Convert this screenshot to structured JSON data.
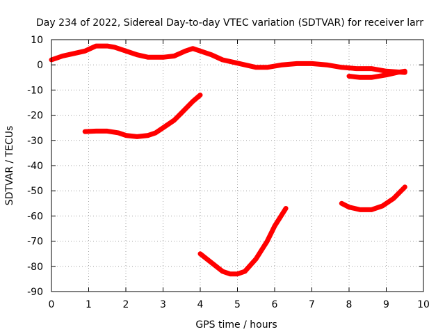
{
  "chart_data": {
    "type": "line",
    "title": "Day 234 of 2022, Sidereal Day-to-day VTEC variation (SDTVAR) for receiver larr",
    "xlabel": "GPS time / hours",
    "ylabel": "SDTVAR / TECUs",
    "xlim": [
      0,
      10
    ],
    "ylim": [
      -90,
      10
    ],
    "xticks": [
      "0",
      "1",
      "2",
      "3",
      "4",
      "5",
      "6",
      "7",
      "8",
      "9",
      "10"
    ],
    "yticks": [
      "10",
      "0",
      "-10",
      "-20",
      "-30",
      "-40",
      "-50",
      "-60",
      "-70",
      "-80",
      "-90"
    ],
    "grid": true,
    "color": "#ff0000",
    "series": [
      {
        "x": [
          0,
          0.3,
          0.6,
          0.9,
          1.2,
          1.5,
          1.7,
          2.0,
          2.3,
          2.6,
          3.0,
          3.3,
          3.6,
          3.8,
          4.0,
          4.3,
          4.6,
          4.9,
          5.2,
          5.5,
          5.8,
          6.2,
          6.6,
          7.0,
          7.4,
          7.8,
          8.2,
          8.6,
          9.0,
          9.5
        ],
        "y": [
          2,
          3.5,
          4.5,
          5.5,
          7.5,
          7.5,
          7,
          5.5,
          4,
          3,
          3,
          3.5,
          5.5,
          6.5,
          5.5,
          4,
          2,
          1,
          0,
          -1,
          -1,
          0,
          0.5,
          0.5,
          0,
          -1,
          -1.5,
          -1.5,
          -2.5,
          -3
        ]
      },
      {
        "x": [
          8.0,
          8.3,
          8.6,
          9.0,
          9.3,
          9.5
        ],
        "y": [
          -4.5,
          -5,
          -5,
          -4,
          -3,
          -2.5
        ]
      },
      {
        "x": [
          0.9,
          1.2,
          1.5,
          1.8,
          2.0,
          2.3,
          2.6,
          2.8,
          3.0,
          3.3,
          3.5,
          3.8,
          4.0
        ],
        "y": [
          -26.5,
          -26.3,
          -26.3,
          -27,
          -28,
          -28.5,
          -28,
          -27,
          -25,
          -22,
          -19,
          -14.5,
          -12
        ]
      },
      {
        "x": [
          4.0,
          4.3,
          4.6,
          4.8,
          5.0,
          5.2,
          5.5,
          5.8,
          6.0,
          6.3
        ],
        "y": [
          -75,
          -78.5,
          -82,
          -83,
          -83,
          -82,
          -77,
          -70,
          -64,
          -57
        ]
      },
      {
        "x": [
          7.8,
          8.0,
          8.3,
          8.6,
          8.9,
          9.2,
          9.5
        ],
        "y": [
          -55,
          -56.5,
          -57.5,
          -57.5,
          -56,
          -53,
          -48.5
        ]
      }
    ]
  }
}
